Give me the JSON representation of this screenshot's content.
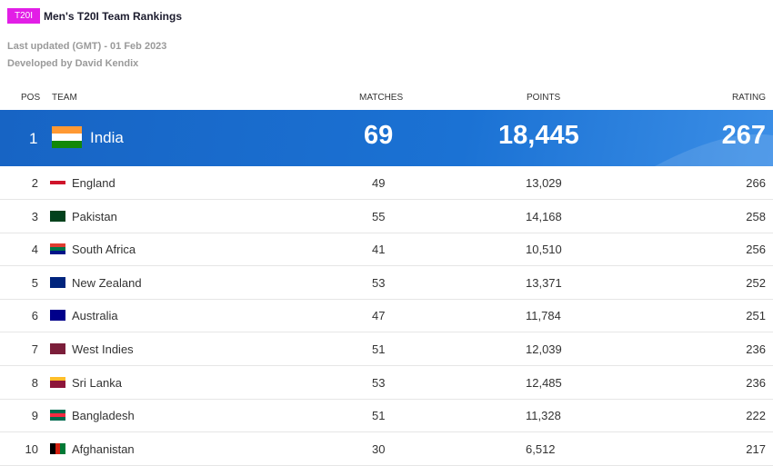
{
  "header": {
    "badge": "T20I",
    "title": "Men's T20I Team Rankings",
    "last_updated": "Last updated (GMT) - 01 Feb 2023",
    "developer": "Developed by David Kendix"
  },
  "table": {
    "columns": [
      "POS",
      "TEAM",
      "MATCHES",
      "POINTS",
      "RATING"
    ],
    "rows": [
      [
        1,
        "India",
        69,
        "18,445",
        267
      ],
      [
        2,
        "England",
        49,
        "13,029",
        266
      ],
      [
        3,
        "Pakistan",
        55,
        "14,168",
        258
      ],
      [
        4,
        "South Africa",
        41,
        "10,510",
        256
      ],
      [
        5,
        "New Zealand",
        53,
        "13,371",
        252
      ],
      [
        6,
        "Australia",
        47,
        "11,784",
        251
      ],
      [
        7,
        "West Indies",
        51,
        "12,039",
        236
      ],
      [
        8,
        "Sri Lanka",
        53,
        "12,485",
        236
      ],
      [
        9,
        "Bangladesh",
        51,
        "11,328",
        222
      ],
      [
        10,
        "Afghanistan",
        30,
        "6,512",
        217
      ]
    ]
  }
}
